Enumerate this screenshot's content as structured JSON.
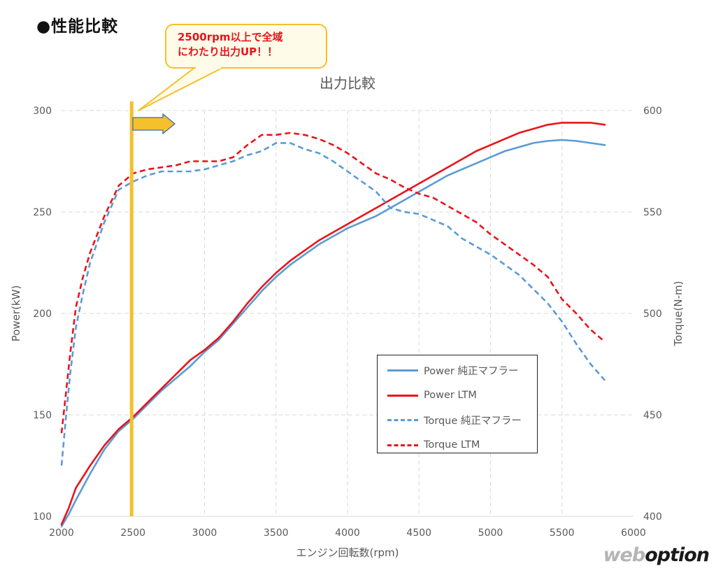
{
  "section_title": "●性能比較",
  "callout": {
    "line1": "2500rpm以上で全域",
    "line2": "にわたり出力UP！！"
  },
  "watermark": {
    "part1": "web",
    "part2": "option"
  },
  "colors": {
    "stock": "#5b9bd5",
    "ltm": "#e8141b",
    "marker": "#f5c02b",
    "grid": "#d9d9d9",
    "text": "#595959"
  },
  "chart_data": {
    "type": "line",
    "title": "出力比較",
    "xlabel": "エンジン回転数(rpm)",
    "ylabel": "Power(kW)",
    "y2label": "Torque(N-m)",
    "xlim": [
      2000,
      6000
    ],
    "ylim": [
      100,
      300
    ],
    "y2lim": [
      400,
      600
    ],
    "x_ticks": [
      2000,
      2500,
      3000,
      3500,
      4000,
      4500,
      5000,
      5500,
      6000
    ],
    "y_ticks": [
      100,
      150,
      200,
      250,
      300
    ],
    "y2_ticks": [
      400,
      450,
      500,
      550,
      600
    ],
    "grid": true,
    "legend_position": "bottom-right",
    "marker_rpm": 2490,
    "series": [
      {
        "name": "Power 純正マフラー",
        "axis": "left",
        "style": "solid",
        "color": "#5b9bd5",
        "x": [
          2000,
          2050,
          2100,
          2200,
          2300,
          2400,
          2500,
          2600,
          2700,
          2800,
          2900,
          3000,
          3100,
          3200,
          3300,
          3400,
          3500,
          3600,
          3700,
          3800,
          3900,
          4000,
          4100,
          4200,
          4300,
          4400,
          4500,
          4600,
          4700,
          4800,
          4900,
          5000,
          5100,
          5200,
          5300,
          5400,
          5500,
          5600,
          5700,
          5800
        ],
        "y": [
          95,
          101,
          108,
          121,
          133,
          142,
          148,
          155,
          162,
          168,
          174,
          181,
          187,
          195,
          203,
          211,
          218,
          224,
          229,
          234,
          238,
          242,
          245,
          248,
          252,
          256,
          260,
          264,
          268,
          271,
          274,
          277,
          280,
          282,
          284,
          285,
          285.5,
          285,
          284,
          283
        ]
      },
      {
        "name": "Power LTM",
        "axis": "left",
        "style": "solid",
        "color": "#e8141b",
        "x": [
          2000,
          2050,
          2100,
          2200,
          2300,
          2400,
          2500,
          2600,
          2700,
          2800,
          2900,
          3000,
          3100,
          3200,
          3300,
          3400,
          3500,
          3600,
          3700,
          3800,
          3900,
          4000,
          4100,
          4200,
          4300,
          4400,
          4500,
          4600,
          4700,
          4800,
          4900,
          5000,
          5100,
          5200,
          5300,
          5400,
          5500,
          5600,
          5700,
          5800
        ],
        "y": [
          96,
          104,
          114,
          125,
          135,
          143,
          149,
          156,
          163,
          170,
          177,
          182,
          188,
          196,
          205,
          213,
          220,
          226,
          231,
          236,
          240,
          244,
          248,
          252,
          256,
          260,
          264,
          268,
          272,
          276,
          280,
          283,
          286,
          289,
          291,
          293,
          294,
          294,
          294,
          293
        ]
      },
      {
        "name": "Torque 純正マフラー",
        "axis": "right",
        "style": "dashed",
        "color": "#5b9bd5",
        "x": [
          2000,
          2030,
          2060,
          2100,
          2150,
          2200,
          2300,
          2400,
          2500,
          2600,
          2700,
          2800,
          2900,
          3000,
          3100,
          3200,
          3300,
          3400,
          3500,
          3600,
          3700,
          3800,
          3900,
          4000,
          4100,
          4200,
          4300,
          4400,
          4500,
          4600,
          4700,
          4800,
          4900,
          5000,
          5100,
          5200,
          5300,
          5400,
          5500,
          5600,
          5700,
          5800
        ],
        "y": [
          425,
          448,
          470,
          493,
          510,
          525,
          545,
          561,
          565,
          568,
          570,
          570,
          570,
          571,
          573,
          575,
          578,
          580,
          584,
          584,
          581,
          579,
          575,
          570,
          565,
          560,
          552,
          550,
          549,
          546,
          543,
          537,
          533,
          529,
          524,
          519,
          512,
          505,
          496,
          485,
          475,
          467
        ]
      },
      {
        "name": "Torque LTM",
        "axis": "right",
        "style": "dashed",
        "color": "#e8141b",
        "x": [
          2000,
          2030,
          2060,
          2100,
          2150,
          2200,
          2300,
          2400,
          2500,
          2600,
          2700,
          2800,
          2900,
          3000,
          3100,
          3200,
          3300,
          3400,
          3500,
          3600,
          3700,
          3800,
          3900,
          4000,
          4100,
          4200,
          4300,
          4400,
          4500,
          4600,
          4700,
          4800,
          4900,
          5000,
          5100,
          5200,
          5300,
          5400,
          5500,
          5600,
          5700,
          5800
        ],
        "y": [
          441,
          460,
          480,
          503,
          518,
          530,
          548,
          563,
          569,
          571,
          572,
          573,
          575,
          575,
          575,
          577,
          583,
          588,
          588,
          589,
          588,
          586,
          583,
          579,
          574,
          569,
          566,
          562,
          559,
          557,
          553,
          549,
          545,
          539,
          534,
          529,
          524,
          518,
          507,
          500,
          492,
          486
        ]
      }
    ]
  }
}
